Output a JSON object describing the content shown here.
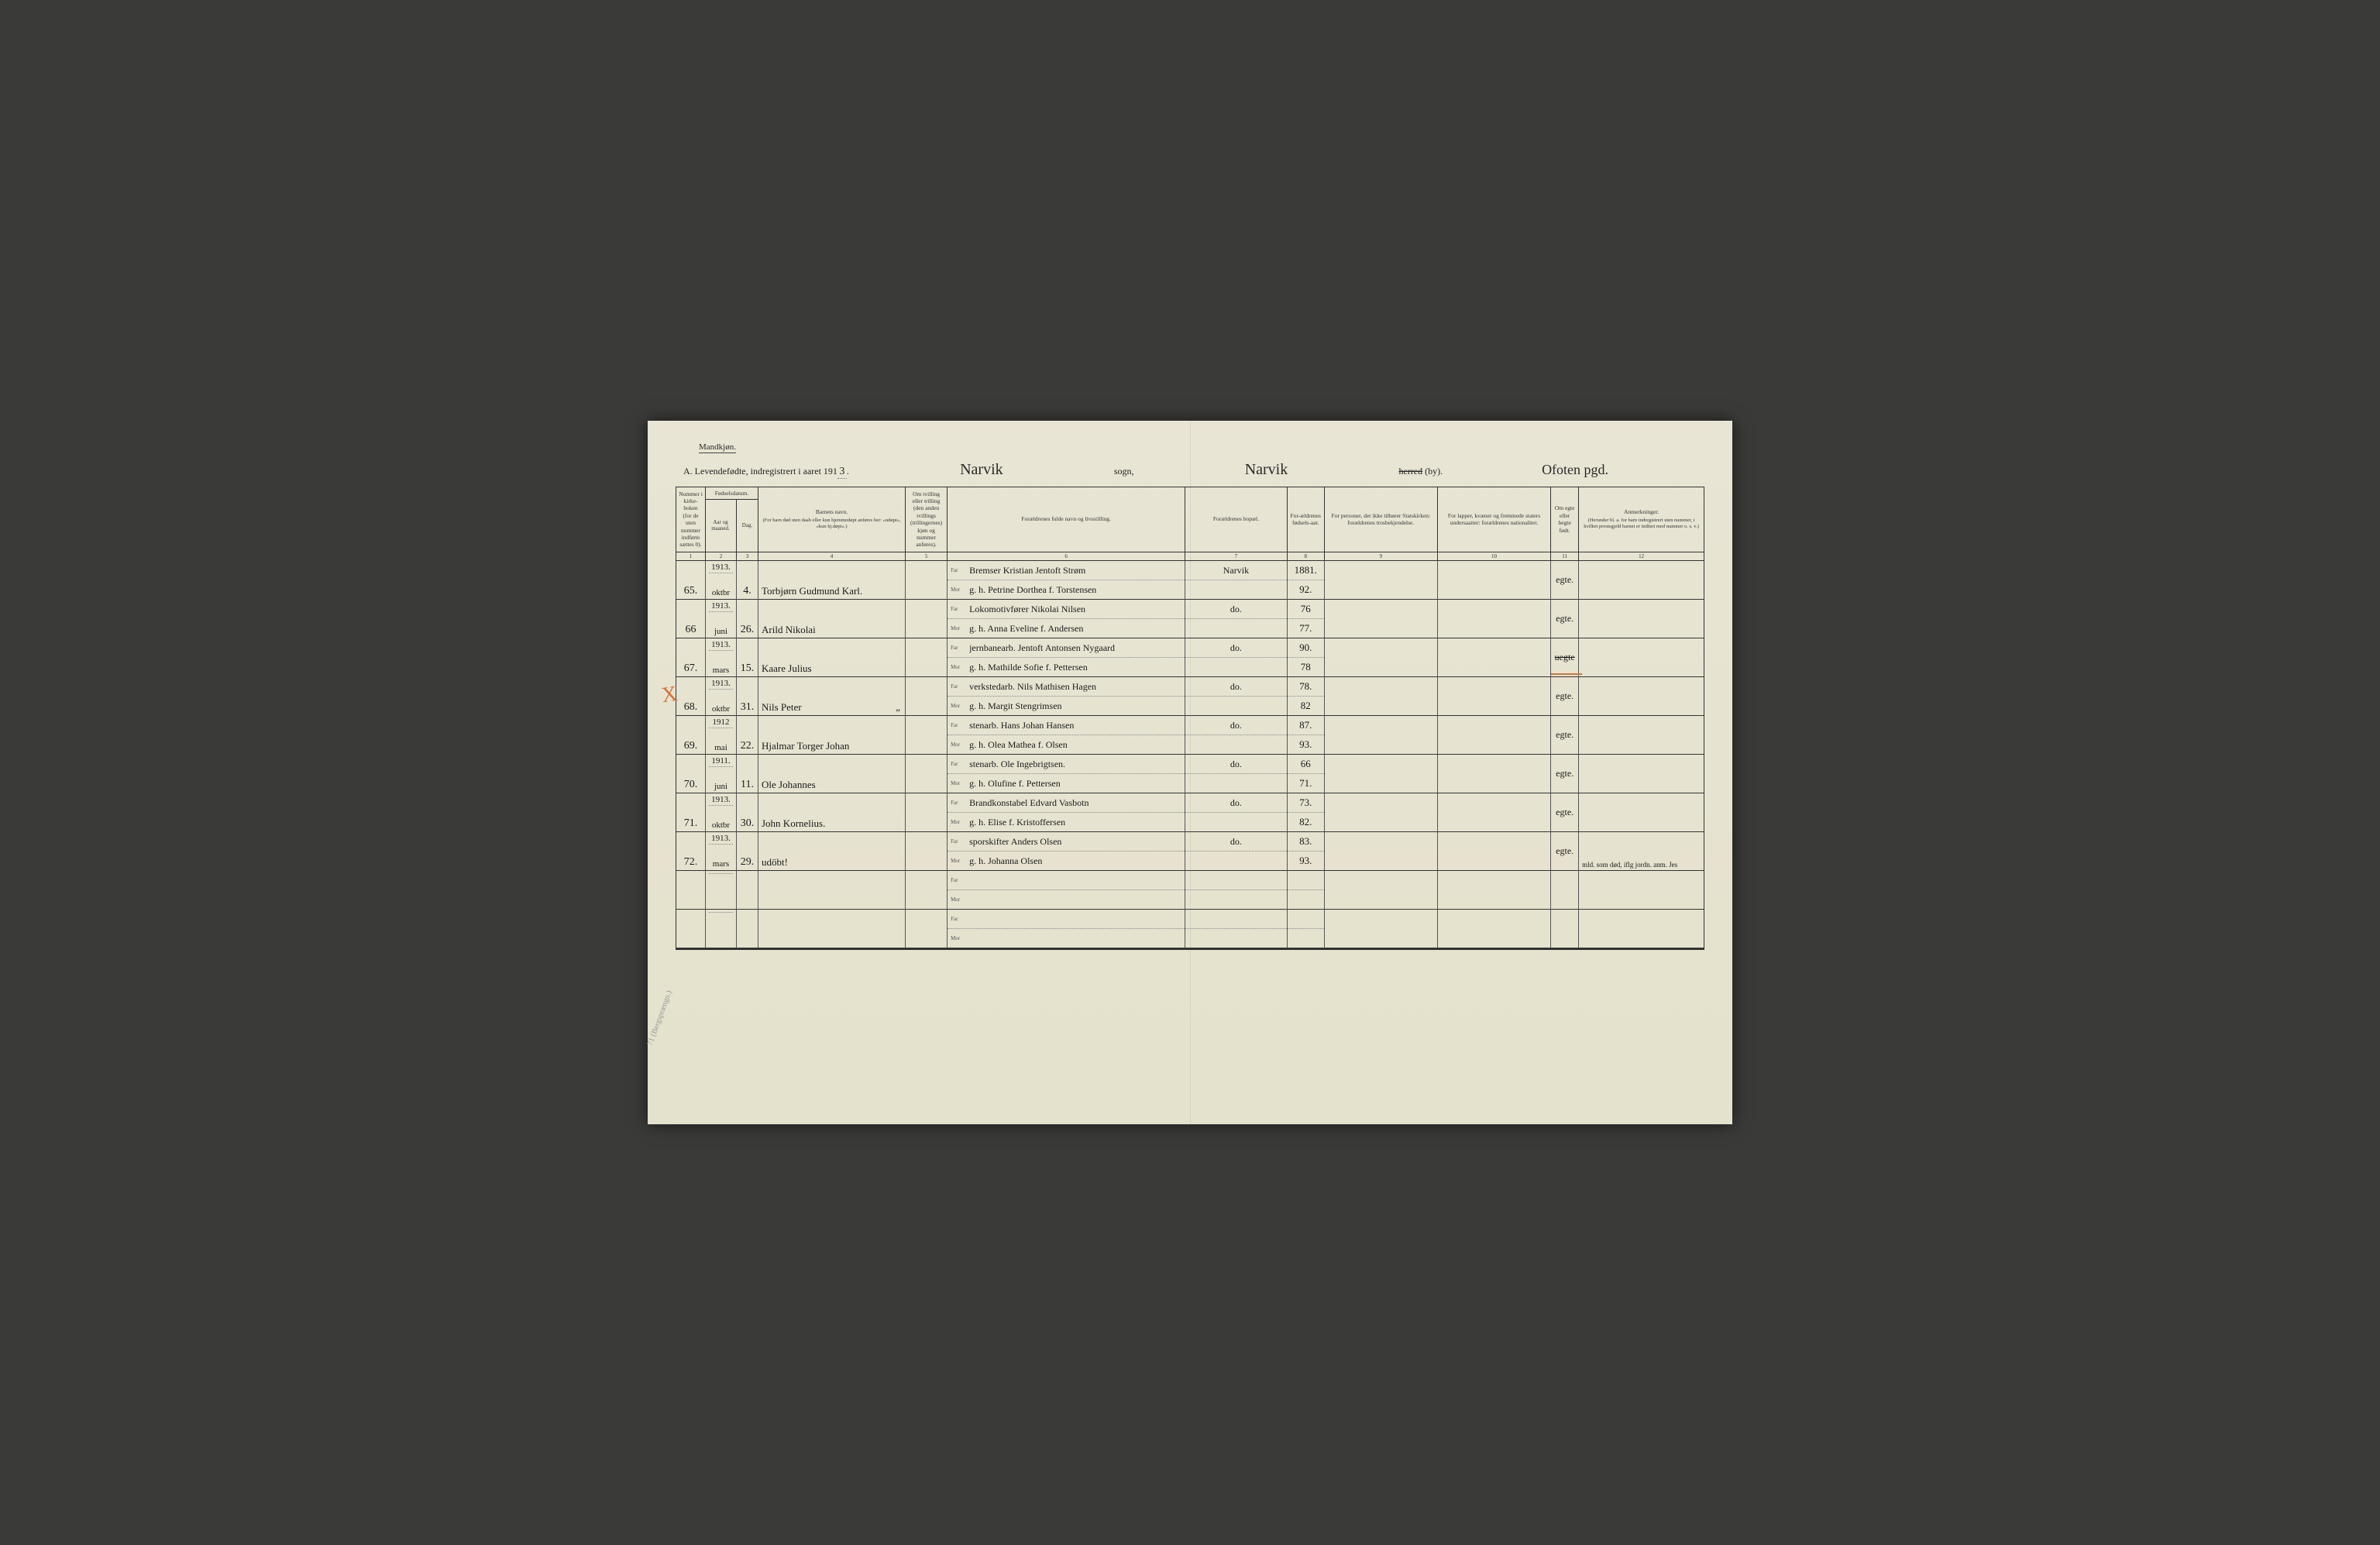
{
  "colors": {
    "page_bg": "#e8e5d4",
    "outer_bg": "#3a3a38",
    "ink": "#1a1a1a",
    "print": "#333333",
    "rule": "#333333",
    "dot_rule": "#888888",
    "red_pencil": "#d4733a"
  },
  "header": {
    "gender_label": "Mandkjøn.",
    "title_prefix": "A.  Levendefødte, indregistrert i aaret 191",
    "title_year_suffix": "3",
    "sogn_script": "Narvik",
    "sogn_label": "sogn,",
    "herred_script": "Narvik",
    "herred_label_struck": "herred",
    "herred_label_tail": "(by).",
    "pgd_script": "Ofoten pgd."
  },
  "columns": [
    {
      "num": "1",
      "head": "Nummer i kirke-boken (for de uten nummer indførte sættes 0)."
    },
    {
      "num": "2-3",
      "head": "Fødselsdatum.",
      "sub_a": "Aar og maaned.",
      "sub_b": "Dag."
    },
    {
      "num": "4",
      "head": "Barnets navn.",
      "sub": "(For barn død uten daab eller kun hjemmedøpt anføres her: «udøpt», «kun hj.døpt».)"
    },
    {
      "num": "5",
      "head": "Om tvilling eller trilling (den anden tvillings (trillingernes) kjøn og nummer anføres)."
    },
    {
      "num": "6",
      "head": "Forældrenes fulde navn og livsstilling."
    },
    {
      "num": "7",
      "head": "Forældrenes bopæl."
    },
    {
      "num": "8",
      "head": "For-ældrenes fødsels-aar."
    },
    {
      "num": "9",
      "head": "For personer, der ikke tilhører Statskirken: forældrenes trosbekjendelse."
    },
    {
      "num": "10",
      "head": "For lapper, kvæner og fremmede staters undersaatter: forældrenes nationalitet."
    },
    {
      "num": "11",
      "head": "Om egte eller hegte født."
    },
    {
      "num": "12",
      "head": "Anmerkninger.",
      "sub": "(Herunder bl. a. for barn indregistrert uten nummer, i hvilket prestegjeld barnet er indført med nummer o. s. v.)"
    }
  ],
  "colnums": [
    "1",
    "2",
    "3",
    "4",
    "5",
    "6",
    "7",
    "8",
    "9",
    "10",
    "11",
    "12"
  ],
  "far_label": "Far",
  "mor_label": "Mor",
  "rows": [
    {
      "num": "65.",
      "year": "1913.",
      "month": "oktbr",
      "day": "4.",
      "child": "Torbjørn Gudmund Karl.",
      "far": "Bremser Kristian Jentoft Strøm",
      "mor": "g. h. Petrine Dorthea f. Torstensen",
      "bopal_far": "Narvik",
      "bopal_mor": "",
      "aar_far": "1881.",
      "aar_mor": "92.",
      "egte": "egte.",
      "anm": ""
    },
    {
      "num": "66",
      "year": "1913.",
      "month": "juni",
      "day": "26.",
      "child": "Arild Nikolai",
      "far": "Lokomotivfører Nikolai Nilsen",
      "mor": "g. h. Anna Eveline f. Andersen",
      "bopal_far": "do.",
      "bopal_mor": "",
      "aar_far": "76",
      "aar_mor": "77.",
      "egte": "egte.",
      "anm": ""
    },
    {
      "num": "67.",
      "year": "1913.",
      "month": "mars",
      "day": "15.",
      "child": "Kaare Julius",
      "far": "jernbanearb. Jentoft Antonsen Nygaard",
      "mor": "g. h. Mathilde Sofie f. Pettersen",
      "bopal_far": "do.",
      "bopal_mor": "",
      "aar_far": "90.",
      "aar_mor": "78",
      "egte": "uegte",
      "anm": "",
      "red_mark": true,
      "egte_strike": true
    },
    {
      "num": "68.",
      "year": "1913.",
      "month": "oktbr",
      "day": "31.",
      "child": "Nils Peter",
      "far": "verkstedarb. Nils Mathisen Hagen",
      "mor": "g. h. Margit Stengrimsen",
      "bopal_far": "do.",
      "bopal_mor": "",
      "aar_far": "78.",
      "aar_mor": "82",
      "egte": "egte.",
      "anm": "",
      "ditto": "„"
    },
    {
      "num": "69.",
      "year": "1912",
      "month": "mai",
      "day": "22.",
      "child": "Hjalmar Torger Johan",
      "far": "stenarb. Hans Johan Hansen",
      "mor": "g. h. Olea Mathea f. Olsen",
      "bopal_far": "do.",
      "bopal_mor": "",
      "aar_far": "87.",
      "aar_mor": "93.",
      "egte": "egte.",
      "anm": ""
    },
    {
      "num": "70.",
      "year": "1911.",
      "month": "juni",
      "day": "11.",
      "child": "Ole Johannes",
      "far": "stenarb. Ole Ingebrigtsen.",
      "mor": "g. h. Olufine f. Pettersen",
      "bopal_far": "do.",
      "bopal_mor": "",
      "aar_far": "66",
      "aar_mor": "71.",
      "egte": "egte.",
      "anm": ""
    },
    {
      "num": "71.",
      "year": "1913.",
      "month": "oktbr",
      "day": "30.",
      "child": "John Kornelius.",
      "far": "Brandkonstabel Edvard Vasbotn",
      "mor": "g. h. Elise f. Kristoffersen",
      "bopal_far": "do.",
      "bopal_mor": "",
      "aar_far": "73.",
      "aar_mor": "82.",
      "egte": "egte.",
      "anm": ""
    },
    {
      "num": "72.",
      "year": "1913.",
      "month": "mars",
      "day": "29.",
      "child": "udöbt!",
      "far": "sporskifter Anders Olsen",
      "mor": "g. h. Johanna Olsen",
      "bopal_far": "do.",
      "bopal_mor": "",
      "aar_far": "83.",
      "aar_mor": "93.",
      "egte": "egte.",
      "anm": "mld. som død, iflg jordn. anm.  Jes"
    },
    {
      "blank": true
    },
    {
      "blank": true
    }
  ],
  "x_mark": "X",
  "margin_note": "71 (Bergsprængn.)"
}
